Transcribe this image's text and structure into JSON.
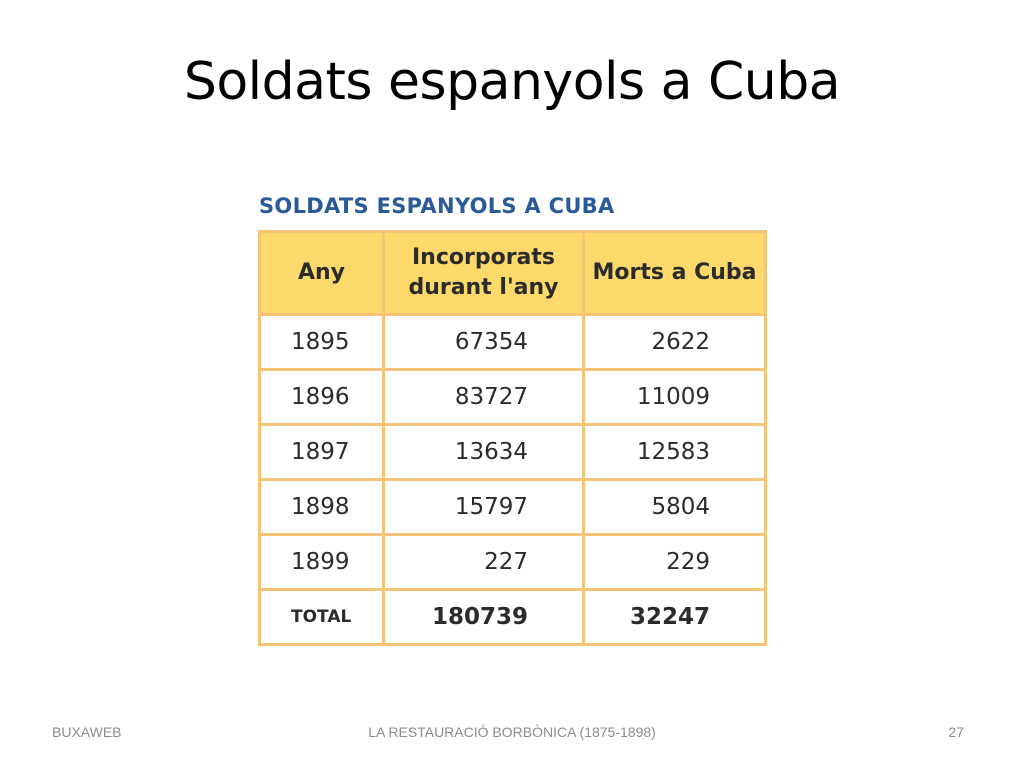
{
  "slide": {
    "title": "Soldats espanyols a Cuba"
  },
  "figure": {
    "caption": "SOLDATS ESPANYOLS A CUBA",
    "headers": {
      "year": "Any",
      "incorporated_line1": "Incorporats",
      "incorporated_line2": "durant l'any",
      "deaths": "Morts a Cuba"
    },
    "rows": [
      {
        "year": "1895",
        "incorporated": "67354",
        "deaths": "2622"
      },
      {
        "year": "1896",
        "incorporated": "83727",
        "deaths": "11009"
      },
      {
        "year": "1897",
        "incorporated": "13634",
        "deaths": "12583"
      },
      {
        "year": "1898",
        "incorporated": "15797",
        "deaths": "5804"
      },
      {
        "year": "1899",
        "incorporated": "227",
        "deaths": "229"
      },
      {
        "year": "TOTAL",
        "incorporated": "180739",
        "deaths": "32247"
      }
    ]
  },
  "footer": {
    "left": "BUXAWEB",
    "center": "LA RESTAURACIÓ BORBÒNICA (1875-1898)",
    "page_number": "27"
  },
  "colors": {
    "header_fill": "#fdd96b",
    "border": "#f6c476",
    "caption": "#2a5a98"
  }
}
